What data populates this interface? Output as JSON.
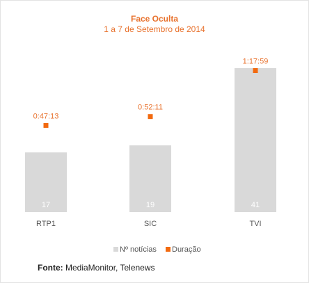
{
  "chart_data": {
    "type": "bar",
    "title": "Face Oculta",
    "subtitle": "1 a 7 de Setembro de 2014",
    "categories": [
      "RTP1",
      "SIC",
      "TVI"
    ],
    "series": [
      {
        "name": "Nº notícias",
        "values": [
          17,
          19,
          41
        ],
        "color": "#d9d9d9"
      },
      {
        "name": "Duração",
        "values": [
          "0:47:13",
          "0:52:11",
          "1:17:59"
        ],
        "seconds": [
          2833,
          3131,
          4679
        ],
        "color": "#f26a10"
      }
    ],
    "legend": "bottom",
    "grid": false
  },
  "source": {
    "label": "Fonte:",
    "text": "MediaMonitor, Telenews"
  }
}
